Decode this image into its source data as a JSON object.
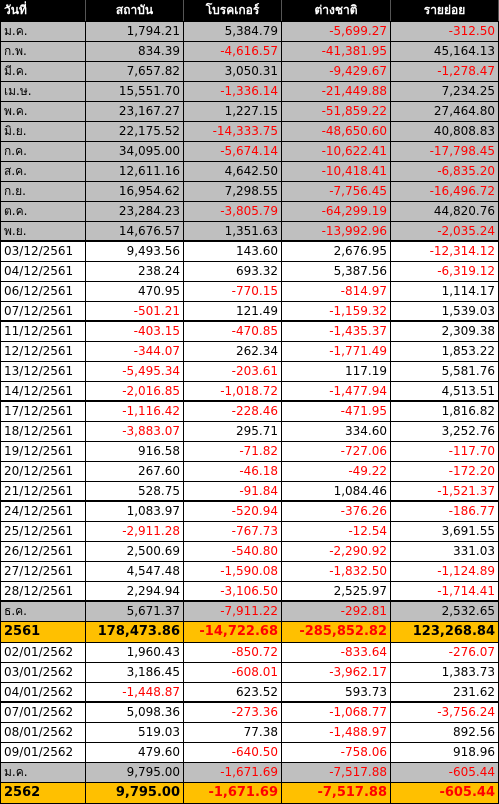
{
  "colors": {
    "header_bg": "#000000",
    "month_row_bg": "#bfbfbf",
    "year_row_bg": "#ffc000",
    "negative": "#ff0000"
  },
  "headers": [
    "วันที่",
    "สถาบัน",
    "โบรคเกอร์",
    "ต่างชาติ",
    "รายย่อย"
  ],
  "rows": [
    {
      "kind": "month",
      "sep": false,
      "cells": [
        "ม.ค.",
        "1,794.21",
        "5,384.79",
        "-5,699.27",
        "-312.50"
      ]
    },
    {
      "kind": "month",
      "sep": false,
      "cells": [
        "ก.พ.",
        "834.39",
        "-4,616.57",
        "-41,381.95",
        "45,164.13"
      ]
    },
    {
      "kind": "month",
      "sep": false,
      "cells": [
        "มี.ค.",
        "7,657.82",
        "3,050.31",
        "-9,429.67",
        "-1,278.47"
      ]
    },
    {
      "kind": "month",
      "sep": false,
      "cells": [
        "เม.ษ.",
        "15,551.70",
        "-1,336.14",
        "-21,449.88",
        "7,234.25"
      ]
    },
    {
      "kind": "month",
      "sep": false,
      "cells": [
        "พ.ค.",
        "23,167.27",
        "1,227.15",
        "-51,859.22",
        "27,464.80"
      ]
    },
    {
      "kind": "month",
      "sep": false,
      "cells": [
        "มิ.ย.",
        "22,175.52",
        "-14,333.75",
        "-48,650.60",
        "40,808.83"
      ]
    },
    {
      "kind": "month",
      "sep": false,
      "cells": [
        "ก.ค.",
        "34,095.00",
        "-5,674.14",
        "-10,622.41",
        "-17,798.45"
      ]
    },
    {
      "kind": "month",
      "sep": false,
      "cells": [
        "ส.ค.",
        "12,611.16",
        "4,642.50",
        "-10,418.41",
        "-6,835.20"
      ]
    },
    {
      "kind": "month",
      "sep": false,
      "cells": [
        "ก.ย.",
        "16,954.62",
        "7,298.55",
        "-7,756.45",
        "-16,496.72"
      ]
    },
    {
      "kind": "month",
      "sep": false,
      "cells": [
        "ต.ค.",
        "23,284.23",
        "-3,805.79",
        "-64,299.19",
        "44,820.76"
      ]
    },
    {
      "kind": "month",
      "sep": true,
      "cells": [
        "พ.ย.",
        "14,676.57",
        "1,351.63",
        "-13,992.96",
        "-2,035.24"
      ]
    },
    {
      "kind": "daily",
      "sep": false,
      "cells": [
        "03/12/2561",
        "9,493.56",
        "143.60",
        "2,676.95",
        "-12,314.12"
      ]
    },
    {
      "kind": "daily",
      "sep": false,
      "cells": [
        "04/12/2561",
        "238.24",
        "693.32",
        "5,387.56",
        "-6,319.12"
      ]
    },
    {
      "kind": "daily",
      "sep": false,
      "cells": [
        "06/12/2561",
        "470.95",
        "-770.15",
        "-814.97",
        "1,114.17"
      ]
    },
    {
      "kind": "daily",
      "sep": true,
      "cells": [
        "07/12/2561",
        "-501.21",
        "121.49",
        "-1,159.32",
        "1,539.03"
      ]
    },
    {
      "kind": "daily",
      "sep": false,
      "cells": [
        "11/12/2561",
        "-403.15",
        "-470.85",
        "-1,435.37",
        "2,309.38"
      ]
    },
    {
      "kind": "daily",
      "sep": false,
      "cells": [
        "12/12/2561",
        "-344.07",
        "262.34",
        "-1,771.49",
        "1,853.22"
      ]
    },
    {
      "kind": "daily",
      "sep": false,
      "cells": [
        "13/12/2561",
        "-5,495.34",
        "-203.61",
        "117.19",
        "5,581.76"
      ]
    },
    {
      "kind": "daily",
      "sep": true,
      "cells": [
        "14/12/2561",
        "-2,016.85",
        "-1,018.72",
        "-1,477.94",
        "4,513.51"
      ]
    },
    {
      "kind": "daily",
      "sep": false,
      "cells": [
        "17/12/2561",
        "-1,116.42",
        "-228.46",
        "-471.95",
        "1,816.82"
      ]
    },
    {
      "kind": "daily",
      "sep": false,
      "cells": [
        "18/12/2561",
        "-3,883.07",
        "295.71",
        "334.60",
        "3,252.76"
      ]
    },
    {
      "kind": "daily",
      "sep": false,
      "cells": [
        "19/12/2561",
        "916.58",
        "-71.82",
        "-727.06",
        "-117.70"
      ]
    },
    {
      "kind": "daily",
      "sep": false,
      "cells": [
        "20/12/2561",
        "267.60",
        "-46.18",
        "-49.22",
        "-172.20"
      ]
    },
    {
      "kind": "daily",
      "sep": true,
      "cells": [
        "21/12/2561",
        "528.75",
        "-91.84",
        "1,084.46",
        "-1,521.37"
      ]
    },
    {
      "kind": "daily",
      "sep": false,
      "cells": [
        "24/12/2561",
        "1,083.97",
        "-520.94",
        "-376.26",
        "-186.77"
      ]
    },
    {
      "kind": "daily",
      "sep": false,
      "cells": [
        "25/12/2561",
        "-2,911.28",
        "-767.73",
        "-12.54",
        "3,691.55"
      ]
    },
    {
      "kind": "daily",
      "sep": false,
      "cells": [
        "26/12/2561",
        "2,500.69",
        "-540.80",
        "-2,290.92",
        "331.03"
      ]
    },
    {
      "kind": "daily",
      "sep": false,
      "cells": [
        "27/12/2561",
        "4,547.48",
        "-1,590.08",
        "-1,832.50",
        "-1,124.89"
      ]
    },
    {
      "kind": "daily",
      "sep": true,
      "cells": [
        "28/12/2561",
        "2,294.94",
        "-3,106.50",
        "2,525.97",
        "-1,714.41"
      ]
    },
    {
      "kind": "month",
      "sep": false,
      "cells": [
        "ธ.ค.",
        "5,671.37",
        "-7,911.22",
        "-292.81",
        "2,532.65"
      ]
    },
    {
      "kind": "year",
      "sep": false,
      "cells": [
        "2561",
        "178,473.86",
        "-14,722.68",
        "-285,852.82",
        "123,268.84"
      ]
    },
    {
      "kind": "daily",
      "sep": false,
      "cells": [
        "02/01/2562",
        "1,960.43",
        "-850.72",
        "-833.64",
        "-276.07"
      ]
    },
    {
      "kind": "daily",
      "sep": false,
      "cells": [
        "03/01/2562",
        "3,186.45",
        "-608.01",
        "-3,962.17",
        "1,383.73"
      ]
    },
    {
      "kind": "daily",
      "sep": true,
      "cells": [
        "04/01/2562",
        "-1,448.87",
        "623.52",
        "593.73",
        "231.62"
      ]
    },
    {
      "kind": "daily",
      "sep": false,
      "cells": [
        "07/01/2562",
        "5,098.36",
        "-273.36",
        "-1,068.77",
        "-3,756.24"
      ]
    },
    {
      "kind": "daily",
      "sep": false,
      "cells": [
        "08/01/2562",
        "519.03",
        "77.38",
        "-1,488.97",
        "892.56"
      ]
    },
    {
      "kind": "daily",
      "sep": false,
      "cells": [
        "09/01/2562",
        "479.60",
        "-640.50",
        "-758.06",
        "918.96"
      ]
    },
    {
      "kind": "month",
      "sep": false,
      "cells": [
        "ม.ค.",
        "9,795.00",
        "-1,671.69",
        "-7,517.88",
        "-605.44"
      ]
    },
    {
      "kind": "year",
      "sep": false,
      "cells": [
        "2562",
        "9,795.00",
        "-1,671.69",
        "-7,517.88",
        "-605.44"
      ]
    }
  ]
}
